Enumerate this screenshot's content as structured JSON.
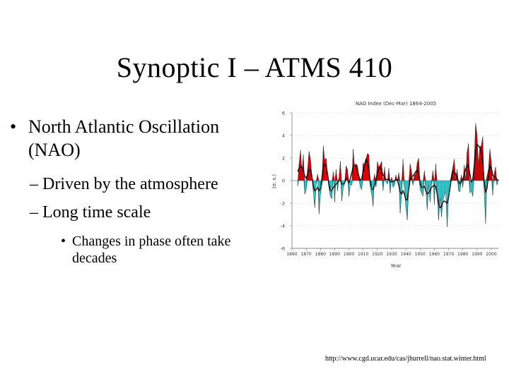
{
  "slide": {
    "title": "Synoptic I – ATMS 410",
    "bullets": {
      "main": "North Atlantic Oscillation (NAO)",
      "sub1": "– Driven by the atmosphere",
      "sub2": "– Long time scale",
      "subsub": "Changes in phase often take decades"
    },
    "source_url": "http://www.cgd.ucar.edu/cas/jhurrell/nao.stat.winter.html"
  },
  "chart_data": {
    "type": "area",
    "title": "NAO Index (Dec-Mar) 1864-2005",
    "xlabel": "Year",
    "ylabel": "(σ, s.)",
    "xlim": [
      1860,
      2005
    ],
    "ylim": [
      -6,
      6
    ],
    "xticks": [
      1860,
      1870,
      1880,
      1890,
      1900,
      1910,
      1920,
      1930,
      1940,
      1950,
      1960,
      1970,
      1980,
      1990,
      2000
    ],
    "yticks": [
      -6,
      -4,
      -2,
      0,
      2,
      4,
      6
    ],
    "colors": {
      "positive": "#e8000c",
      "negative": "#33e0e4",
      "line": "#000000"
    },
    "x": [
      1864,
      1865,
      1866,
      1867,
      1868,
      1869,
      1870,
      1871,
      1872,
      1873,
      1874,
      1875,
      1876,
      1877,
      1878,
      1879,
      1880,
      1881,
      1882,
      1883,
      1884,
      1885,
      1886,
      1887,
      1888,
      1889,
      1890,
      1891,
      1892,
      1893,
      1894,
      1895,
      1896,
      1897,
      1898,
      1899,
      1900,
      1901,
      1902,
      1903,
      1904,
      1905,
      1906,
      1907,
      1908,
      1909,
      1910,
      1911,
      1912,
      1913,
      1914,
      1915,
      1916,
      1917,
      1918,
      1919,
      1920,
      1921,
      1922,
      1923,
      1924,
      1925,
      1926,
      1927,
      1928,
      1929,
      1930,
      1931,
      1932,
      1933,
      1934,
      1935,
      1936,
      1937,
      1938,
      1939,
      1940,
      1941,
      1942,
      1943,
      1944,
      1945,
      1946,
      1947,
      1948,
      1949,
      1950,
      1951,
      1952,
      1953,
      1954,
      1955,
      1956,
      1957,
      1958,
      1959,
      1960,
      1961,
      1962,
      1963,
      1964,
      1965,
      1966,
      1967,
      1968,
      1969,
      1970,
      1971,
      1972,
      1973,
      1974,
      1975,
      1976,
      1977,
      1978,
      1979,
      1980,
      1981,
      1982,
      1983,
      1984,
      1985,
      1986,
      1987,
      1988,
      1989,
      1990,
      1991,
      1992,
      1993,
      1994,
      1995,
      1996,
      1997,
      1998,
      1999,
      2000,
      2001,
      2002,
      2003,
      2004,
      2005
    ],
    "values": [
      -0.5,
      1.5,
      2.7,
      0.8,
      2.3,
      -1.2,
      -0.8,
      1.1,
      2.6,
      1.9,
      0.4,
      -1.0,
      -2.4,
      -0.3,
      0.6,
      -3.0,
      -1.2,
      -0.4,
      3.1,
      1.8,
      2.0,
      0.5,
      -0.7,
      -1.4,
      -1.6,
      0.8,
      -1.9,
      1.0,
      -0.9,
      0.2,
      1.7,
      -1.8,
      -0.6,
      -0.3,
      1.3,
      1.0,
      -1.4,
      -0.3,
      -0.4,
      2.8,
      1.1,
      1.5,
      1.3,
      0.4,
      -0.6,
      -0.8,
      1.6,
      1.2,
      1.9,
      2.4,
      2.3,
      -0.6,
      -1.2,
      -2.3,
      0.6,
      -0.6,
      1.7,
      1.2,
      1.4,
      1.7,
      -0.9,
      1.2,
      -0.1,
      -0.3,
      1.1,
      -1.1,
      0.3,
      -0.6,
      -0.4,
      0.5,
      -0.1,
      0.7,
      -2.9,
      -1.2,
      1.9,
      -0.6,
      -2.4,
      -3.5,
      -0.7,
      1.5,
      0.8,
      -0.4,
      0.5,
      0.6,
      1.6,
      2.0,
      -0.8,
      -1.1,
      -1.4,
      0.9,
      -0.7,
      -2.6,
      -0.3,
      -1.9,
      -0.4,
      0.9,
      -2.1,
      1.5,
      -1.3,
      -3.5,
      -1.5,
      -3.2,
      -1.8,
      -1.3,
      -0.9,
      -4.1,
      -1.4,
      -0.6,
      0.5,
      1.2,
      1.9,
      0.1,
      1.0,
      -0.9,
      -1.0,
      0.5,
      -0.6,
      1.4,
      0.0,
      2.5,
      3.3,
      -1.1,
      -0.9,
      -1.4,
      1.6,
      5.1,
      4.1,
      1.4,
      3.0,
      3.1,
      3.9,
      -0.9,
      -3.8,
      0.4,
      1.0,
      2.8,
      1.7,
      -1.3,
      0.6,
      1.2,
      -0.4,
      0.1
    ],
    "smoothed": [
      0.8,
      1.1,
      1.3,
      1.2,
      0.9,
      0.4,
      0.2,
      0.6,
      1.0,
      1.0,
      0.4,
      -0.5,
      -0.9,
      -0.8,
      -0.6,
      -0.9,
      -0.7,
      0.2,
      1.2,
      1.5,
      1.3,
      0.6,
      -0.3,
      -0.9,
      -0.9,
      -0.6,
      -0.5,
      -0.3,
      -0.2,
      0.0,
      0.0,
      -0.3,
      -0.3,
      -0.2,
      0.2,
      0.1,
      -0.2,
      0.2,
      0.7,
      1.2,
      1.4,
      1.3,
      0.9,
      0.4,
      0.0,
      0.2,
      0.8,
      1.4,
      1.9,
      1.6,
      0.9,
      0.0,
      -0.7,
      -0.8,
      -0.4,
      0.1,
      0.7,
      1.1,
      1.2,
      0.9,
      0.5,
      0.3,
      0.1,
      0.1,
      0.1,
      -0.1,
      -0.1,
      -0.1,
      0.0,
      0.1,
      0.1,
      -0.4,
      -1.0,
      -1.2,
      -0.9,
      -1.2,
      -1.7,
      -1.7,
      -0.8,
      0.1,
      0.4,
      0.4,
      0.6,
      0.8,
      0.9,
      0.6,
      -0.1,
      -0.6,
      -0.6,
      -0.5,
      -0.9,
      -1.2,
      -1.1,
      -0.9,
      -0.6,
      -0.5,
      -0.4,
      -0.5,
      -1.2,
      -2.0,
      -2.4,
      -2.3,
      -1.9,
      -1.8,
      -1.9,
      -2.0,
      -1.5,
      -0.7,
      0.2,
      0.8,
      0.8,
      0.6,
      0.2,
      -0.1,
      -0.3,
      -0.1,
      0.1,
      0.5,
      1.0,
      1.4,
      1.3,
      0.6,
      -0.1,
      0.1,
      1.3,
      2.6,
      3.2,
      3.1,
      2.9,
      2.6,
      1.7,
      0.0,
      -1.0,
      -0.7,
      0.4,
      1.3,
      1.2,
      0.5,
      0.3,
      0.3,
      0.1,
      0.0
    ]
  }
}
